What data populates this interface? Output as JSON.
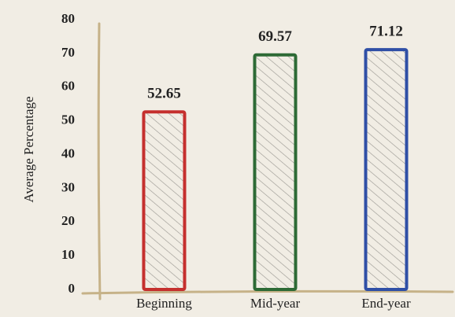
{
  "chart_data": {
    "type": "bar",
    "y_label": "Average Percentage",
    "categories": [
      "Beginning",
      "Mid-year",
      "End-year"
    ],
    "series": [
      {
        "name": null,
        "values": [
          52.65,
          69.57,
          71.12
        ]
      }
    ],
    "colors": [
      "#c5302e",
      "#2d6a35",
      "#2f4fa6"
    ],
    "ylim": [
      0,
      80
    ],
    "yticks": [
      0,
      10,
      20,
      30,
      40,
      50,
      60,
      70,
      80
    ],
    "grid": false
  }
}
